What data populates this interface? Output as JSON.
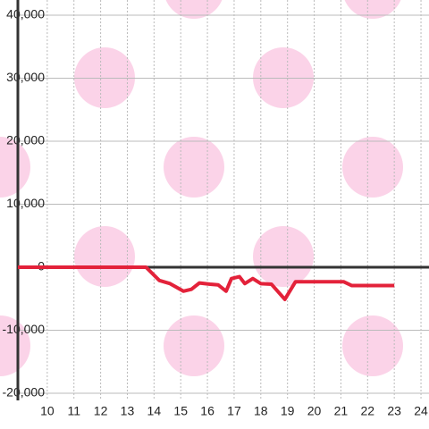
{
  "chart_data": {
    "type": "line",
    "x": [
      8.9,
      13.7,
      14.2,
      14.6,
      15.1,
      15.4,
      15.7,
      16.1,
      16.4,
      16.7,
      16.9,
      17.2,
      17.4,
      17.7,
      18.0,
      18.4,
      18.9,
      19.3,
      21.1,
      21.4,
      23.0
    ],
    "series": [
      {
        "name": "",
        "color": "#e3223a",
        "values": [
          0,
          0,
          -2100,
          -2600,
          -3800,
          -3500,
          -2500,
          -2700,
          -2800,
          -3800,
          -1800,
          -1500,
          -2600,
          -1800,
          -2600,
          -2700,
          -5100,
          -2300,
          -2300,
          -2900,
          -2900
        ]
      }
    ],
    "xlim": [
      8.9,
      24.3
    ],
    "xticks": [
      10,
      11,
      12,
      13,
      14,
      15,
      16,
      17,
      18,
      19,
      20,
      21,
      22,
      23,
      24
    ],
    "ylim": [
      -20000,
      40000
    ],
    "yticks": [
      {
        "value": -20000,
        "label": "-20,000"
      },
      {
        "value": -10000,
        "label": "-10,000"
      },
      0,
      {
        "value": 10000,
        "label": "10,000"
      },
      {
        "value": 20000,
        "label": "20,000"
      },
      {
        "value": 30000,
        "label": "30,000"
      },
      {
        "value": 40000,
        "label": "40,000"
      }
    ],
    "grid": true
  }
}
